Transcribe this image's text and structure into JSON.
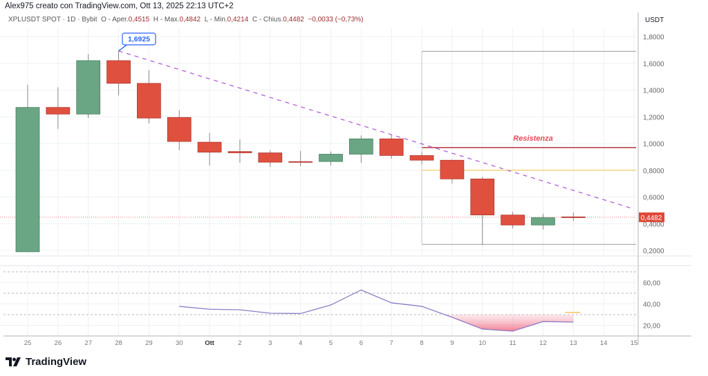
{
  "header": {
    "title": "Alex975 creato con TradingView.com, Ott 13, 2025 22:13 UTC+2"
  },
  "legend": {
    "symbol": "XPLUSDT SPOT · 1D · Bybit",
    "open_label": "O - Aper.",
    "open": "0,4515",
    "high_label": "H - Max.",
    "high": "0,4842",
    "low_label": "L - Min.",
    "low": "0,4214",
    "close_label": "C - Chius.",
    "close": "0,4482",
    "change": "−0,0033 (−0,73%)"
  },
  "price_axis": {
    "currency": "USDT",
    "last_price": "0,4482",
    "last_price_color": "#e0493a"
  },
  "annotations": {
    "peak_label": "1,6925",
    "resistance_label": "Resistenza"
  },
  "branding": {
    "logo_text": "TradingView"
  },
  "colors": {
    "up": "#6aa584",
    "down": "#e0503f",
    "trendline": "#b45dd8",
    "resistance": "#b2363f",
    "support": "#f5c242",
    "rsi": "#8e7cc3"
  },
  "chart_data": [
    {
      "type": "candlestick",
      "x_ticks": [
        "25",
        "26",
        "27",
        "28",
        "29",
        "30",
        "Ott",
        "2",
        "3",
        "4",
        "5",
        "6",
        "7",
        "8",
        "9",
        "10",
        "11",
        "12",
        "13",
        "14",
        "15"
      ],
      "y_ticks": [
        "1,8000",
        "1,6000",
        "1,4000",
        "1,2000",
        "1,0000",
        "0,8000",
        "0,6000",
        "0,4000",
        "0,2000"
      ],
      "ylim": [
        0.2,
        1.8
      ],
      "candles": [
        {
          "x": "25",
          "o": 0.19,
          "h": 1.44,
          "l": 0.19,
          "c": 1.27
        },
        {
          "x": "26",
          "o": 1.27,
          "h": 1.42,
          "l": 1.11,
          "c": 1.22
        },
        {
          "x": "27",
          "o": 1.22,
          "h": 1.67,
          "l": 1.19,
          "c": 1.62
        },
        {
          "x": "28",
          "o": 1.62,
          "h": 1.6925,
          "l": 1.36,
          "c": 1.45
        },
        {
          "x": "29",
          "o": 1.45,
          "h": 1.55,
          "l": 1.15,
          "c": 1.19
        },
        {
          "x": "30",
          "o": 1.195,
          "h": 1.25,
          "l": 0.95,
          "c": 1.015
        },
        {
          "x": "Ott",
          "o": 1.01,
          "h": 1.08,
          "l": 0.835,
          "c": 0.935
        },
        {
          "x": "2",
          "o": 0.94,
          "h": 1.03,
          "l": 0.855,
          "c": 0.93
        },
        {
          "x": "3",
          "o": 0.93,
          "h": 0.95,
          "l": 0.825,
          "c": 0.86
        },
        {
          "x": "4",
          "o": 0.865,
          "h": 0.945,
          "l": 0.83,
          "c": 0.86
        },
        {
          "x": "5",
          "o": 0.865,
          "h": 0.94,
          "l": 0.835,
          "c": 0.92
        },
        {
          "x": "6",
          "o": 0.92,
          "h": 1.06,
          "l": 0.855,
          "c": 1.035
        },
        {
          "x": "7",
          "o": 1.035,
          "h": 1.065,
          "l": 0.885,
          "c": 0.91
        },
        {
          "x": "8",
          "o": 0.91,
          "h": 0.935,
          "l": 0.845,
          "c": 0.875
        },
        {
          "x": "9",
          "o": 0.875,
          "h": 0.88,
          "l": 0.7,
          "c": 0.735
        },
        {
          "x": "10",
          "o": 0.735,
          "h": 0.75,
          "l": 0.24,
          "c": 0.465
        },
        {
          "x": "11",
          "o": 0.465,
          "h": 0.49,
          "l": 0.365,
          "c": 0.39
        },
        {
          "x": "12",
          "o": 0.39,
          "h": 0.475,
          "l": 0.355,
          "c": 0.445
        },
        {
          "x": "13",
          "o": 0.4515,
          "h": 0.4842,
          "l": 0.4214,
          "c": 0.4482
        }
      ],
      "trendline": {
        "from": {
          "x": "28",
          "y": 1.6925
        },
        "to": {
          "x": "15",
          "y": 0.51
        }
      },
      "horizontal_lines": [
        {
          "name": "Resistenza",
          "y": 0.97,
          "from": "8",
          "color": "#b2363f"
        },
        {
          "y": 0.8,
          "from": "8",
          "color": "#f5c242"
        },
        {
          "y": 1.69,
          "from": "8",
          "color": "#9a9a9a"
        },
        {
          "y": 0.245,
          "from": "8",
          "color": "#9a9a9a"
        }
      ]
    },
    {
      "type": "line",
      "y_ticks": [
        "60,00",
        "40,00",
        "20,00"
      ],
      "levels": [
        70,
        50,
        30
      ],
      "x": [
        "30",
        "Ott",
        "2",
        "3",
        "4",
        "5",
        "6",
        "7",
        "8",
        "9",
        "10",
        "11",
        "12",
        "13"
      ],
      "values": [
        37.7,
        35,
        34.5,
        31.3,
        31,
        39,
        53,
        41,
        37.7,
        27.5,
        16.5,
        14.5,
        23.5,
        23
      ],
      "signal_last": 32
    }
  ]
}
